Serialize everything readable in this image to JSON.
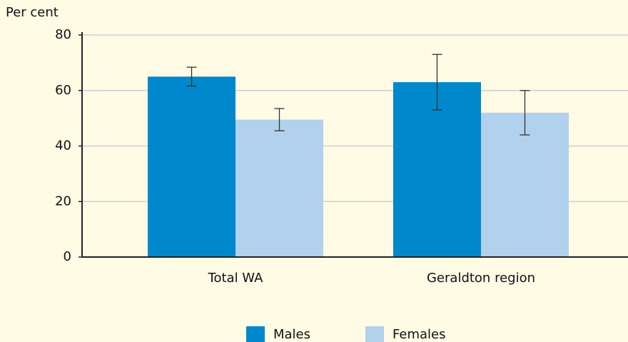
{
  "chart_data": {
    "type": "bar",
    "y_label": "Per cent",
    "categories": [
      "Total WA",
      "Geraldton region"
    ],
    "series": [
      {
        "name": "Males",
        "color": "#0088cc",
        "values": [
          65,
          63
        ],
        "errors": [
          3.4,
          10
        ]
      },
      {
        "name": "Females",
        "color": "#b1d1ec",
        "values": [
          49.5,
          52
        ],
        "errors": [
          4,
          8
        ]
      }
    ],
    "ylim": [
      0,
      80
    ],
    "yticks": [
      0,
      20,
      40,
      60,
      80
    ],
    "grid": true,
    "legend": "bottom"
  }
}
